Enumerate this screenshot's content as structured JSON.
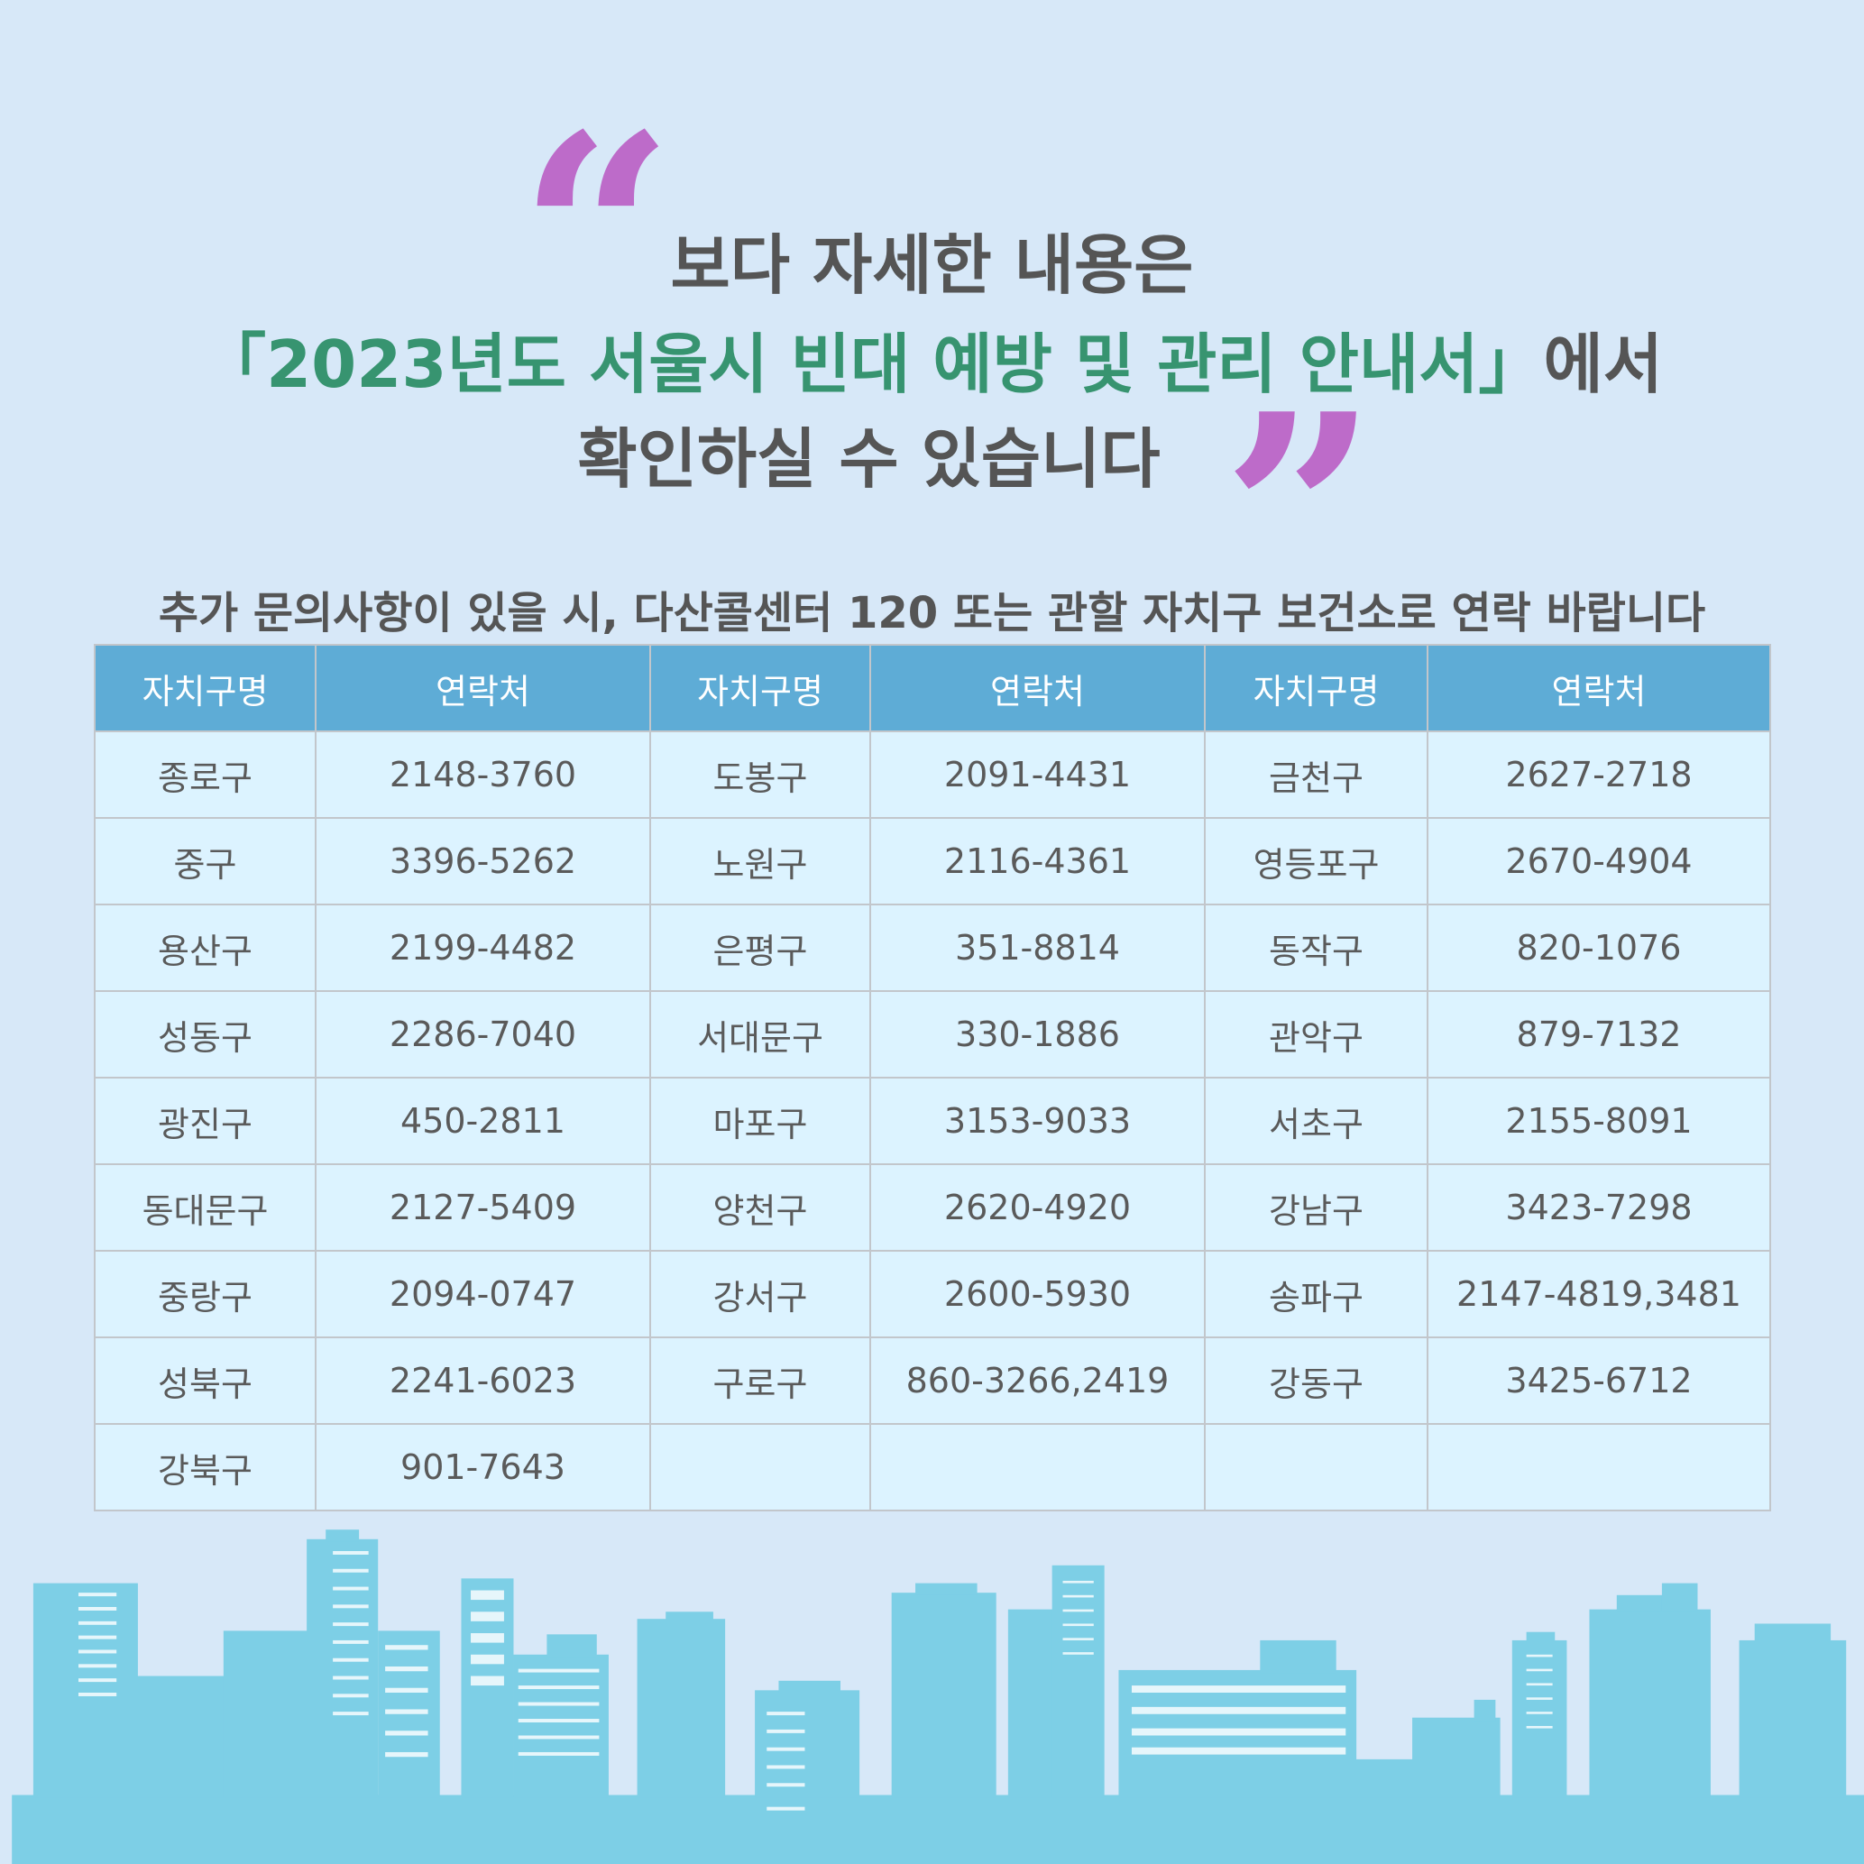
{
  "headline": {
    "line1": "보다 자세한 내용은",
    "line2_highlight": "「2023년도 서울시 빈대 예방 및 관리 안내서」",
    "line2_rest": "에서",
    "line3": "확인하실 수 있습니다"
  },
  "subtitle": "추가 문의사항이 있을 시, 다산콜센터 120 또는 관할 자치구 보건소로 연락 바랍니다",
  "colors": {
    "background": "#d7e8f8",
    "header": "#5eacd6",
    "cell": "#dcf3ff",
    "highlight": "#379470",
    "quote": "#bd6bc9",
    "skyline": "#7dcfe6"
  },
  "table": {
    "headers": [
      "자치구명",
      "연락처",
      "자치구명",
      "연락처",
      "자치구명",
      "연락처"
    ],
    "rows": [
      [
        "종로구",
        "2148-3760",
        "도봉구",
        "2091-4431",
        "금천구",
        "2627-2718"
      ],
      [
        "중구",
        "3396-5262",
        "노원구",
        "2116-4361",
        "영등포구",
        "2670-4904"
      ],
      [
        "용산구",
        "2199-4482",
        "은평구",
        "351-8814",
        "동작구",
        "820-1076"
      ],
      [
        "성동구",
        "2286-7040",
        "서대문구",
        "330-1886",
        "관악구",
        "879-7132"
      ],
      [
        "광진구",
        "450-2811",
        "마포구",
        "3153-9033",
        "서초구",
        "2155-8091"
      ],
      [
        "동대문구",
        "2127-5409",
        "양천구",
        "2620-4920",
        "강남구",
        "3423-7298"
      ],
      [
        "중랑구",
        "2094-0747",
        "강서구",
        "2600-5930",
        "송파구",
        "2147-4819,3481"
      ],
      [
        "성북구",
        "2241-6023",
        "구로구",
        "860-3266,2419",
        "강동구",
        "3425-6712"
      ],
      [
        "강북구",
        "901-7643",
        "",
        "",
        "",
        ""
      ]
    ]
  }
}
